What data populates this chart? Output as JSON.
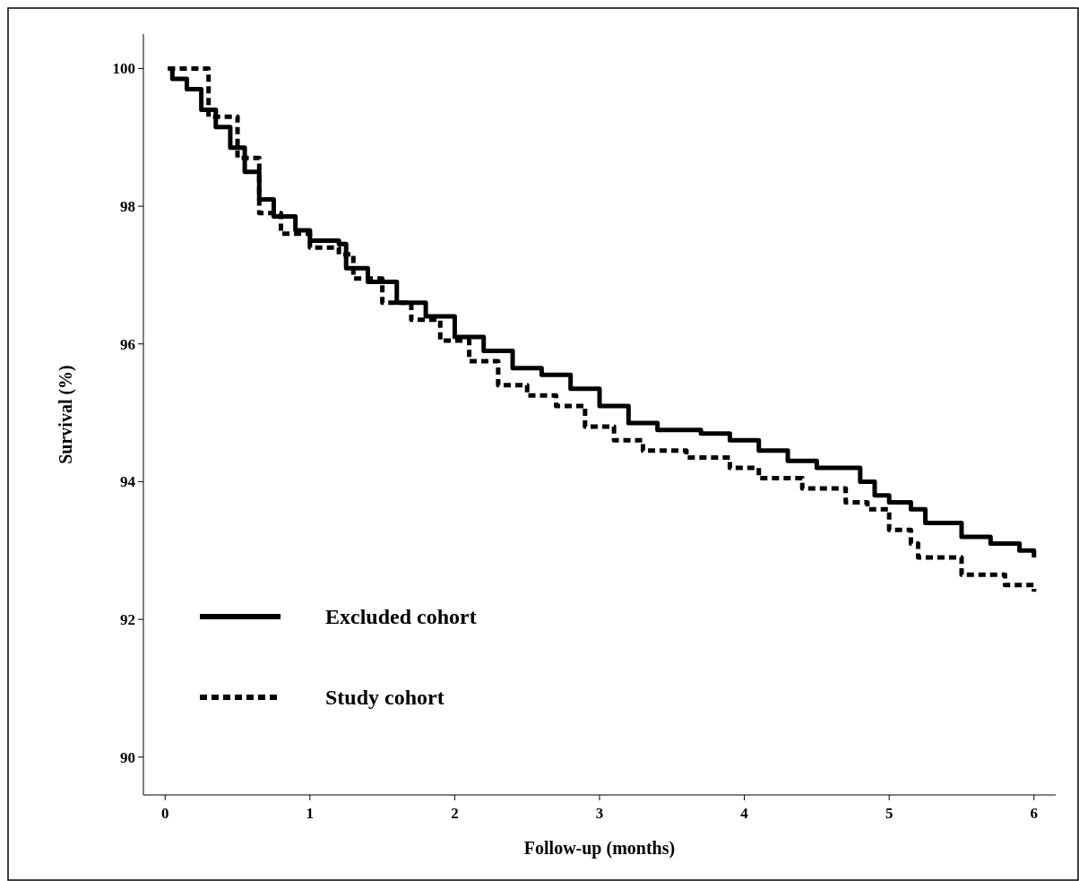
{
  "chart_data": {
    "type": "step",
    "xlabel": "Follow-up (months)",
    "ylabel": "Survival (%)",
    "xlim": [
      -0.15,
      6.15
    ],
    "ylim": [
      89.45,
      100.5
    ],
    "xticks": [
      0,
      1,
      2,
      3,
      4,
      5,
      6
    ],
    "yticks": [
      90,
      92,
      94,
      96,
      98,
      100
    ],
    "grid": false,
    "legend": "bottom left",
    "marker": "none",
    "series": [
      {
        "name": "Excluded cohort",
        "color": "#000000",
        "line_style": "solid",
        "x": [
          0.02,
          0.05,
          0.15,
          0.25,
          0.35,
          0.45,
          0.55,
          0.65,
          0.75,
          0.9,
          1.0,
          1.2,
          1.25,
          1.4,
          1.6,
          1.8,
          2.0,
          2.2,
          2.4,
          2.6,
          2.8,
          3.0,
          3.2,
          3.4,
          3.7,
          3.9,
          4.1,
          4.3,
          4.5,
          4.8,
          4.9,
          5.0,
          5.15,
          5.25,
          5.5,
          5.7,
          5.9,
          6.0
        ],
        "values": [
          100,
          99.85,
          99.7,
          99.4,
          99.15,
          98.85,
          98.5,
          98.1,
          97.85,
          97.65,
          97.5,
          97.45,
          97.1,
          96.9,
          96.6,
          96.4,
          96.1,
          95.9,
          95.65,
          95.55,
          95.35,
          95.1,
          94.85,
          94.75,
          94.7,
          94.6,
          94.45,
          94.3,
          94.2,
          94.0,
          93.8,
          93.7,
          93.6,
          93.4,
          93.2,
          93.1,
          93.0,
          92.9
        ]
      },
      {
        "name": "Study cohort",
        "color": "#000000",
        "line_style": "dotted",
        "x": [
          0.02,
          0.3,
          0.5,
          0.65,
          0.8,
          1.0,
          1.2,
          1.3,
          1.5,
          1.7,
          1.9,
          2.1,
          2.3,
          2.5,
          2.7,
          2.9,
          3.1,
          3.3,
          3.6,
          3.9,
          4.1,
          4.4,
          4.7,
          4.85,
          5.0,
          5.15,
          5.2,
          5.5,
          5.8,
          6.0
        ],
        "values": [
          100,
          99.3,
          98.7,
          97.9,
          97.6,
          97.4,
          97.3,
          96.95,
          96.6,
          96.35,
          96.05,
          95.75,
          95.4,
          95.25,
          95.1,
          94.8,
          94.6,
          94.45,
          94.35,
          94.2,
          94.05,
          93.9,
          93.7,
          93.6,
          93.3,
          93.1,
          92.9,
          92.65,
          92.5,
          92.4
        ]
      }
    ]
  }
}
